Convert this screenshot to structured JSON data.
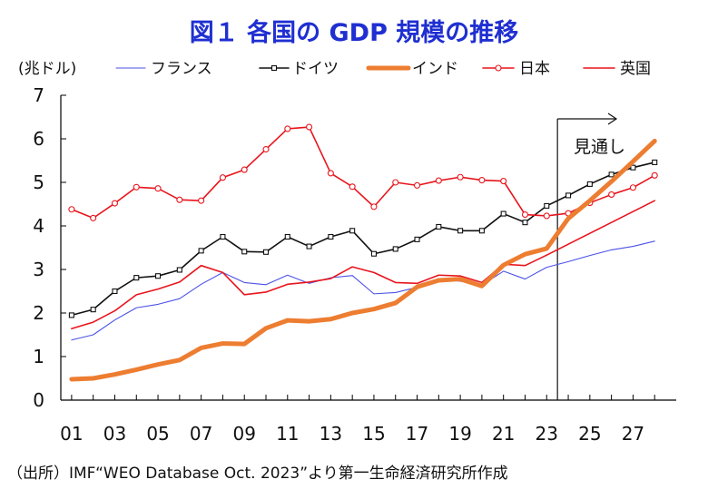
{
  "title": "図１ 各国の GDP 規模の推移",
  "source": "（出所）IMF“WEO Database Oct. 2023”より第一生命経済研究所作成",
  "chart_data": {
    "type": "line",
    "title": "図１ 各国の GDP 規模の推移",
    "ylabel": "(兆ドル)",
    "xlabel": "",
    "ylim": [
      0,
      7
    ],
    "yticks": [
      "0",
      "1",
      "2",
      "3",
      "4",
      "5",
      "6",
      "7"
    ],
    "xlim": [
      2000.5,
      2029
    ],
    "x": [
      2001,
      2002,
      2003,
      2004,
      2005,
      2006,
      2007,
      2008,
      2009,
      2010,
      2011,
      2012,
      2013,
      2014,
      2015,
      2016,
      2017,
      2018,
      2019,
      2020,
      2021,
      2022,
      2023,
      2024,
      2025,
      2026,
      2027,
      2028
    ],
    "xtick_labels": [
      {
        "x": 2001,
        "label": "01"
      },
      {
        "x": 2003,
        "label": "03"
      },
      {
        "x": 2005,
        "label": "05"
      },
      {
        "x": 2007,
        "label": "07"
      },
      {
        "x": 2009,
        "label": "09"
      },
      {
        "x": 2011,
        "label": "11"
      },
      {
        "x": 2013,
        "label": "13"
      },
      {
        "x": 2015,
        "label": "15"
      },
      {
        "x": 2017,
        "label": "17"
      },
      {
        "x": 2019,
        "label": "19"
      },
      {
        "x": 2021,
        "label": "21"
      },
      {
        "x": 2023,
        "label": "23"
      },
      {
        "x": 2025,
        "label": "25"
      },
      {
        "x": 2027,
        "label": "27"
      }
    ],
    "projection": {
      "start": 2023.5,
      "label": "見通し"
    },
    "series": [
      {
        "name": "フランス",
        "color": "#4a52e6",
        "style": "thin",
        "values": [
          1.38,
          1.5,
          1.84,
          2.12,
          2.2,
          2.33,
          2.66,
          2.93,
          2.7,
          2.65,
          2.87,
          2.68,
          2.81,
          2.86,
          2.44,
          2.47,
          2.59,
          2.79,
          2.73,
          2.64,
          2.96,
          2.78,
          3.05,
          3.18,
          3.32,
          3.45,
          3.53,
          3.65
        ]
      },
      {
        "name": "ドイツ",
        "color": "#111111",
        "style": "square",
        "values": [
          1.95,
          2.08,
          2.5,
          2.81,
          2.85,
          2.99,
          3.43,
          3.75,
          3.41,
          3.4,
          3.75,
          3.53,
          3.75,
          3.89,
          3.36,
          3.47,
          3.69,
          3.98,
          3.89,
          3.89,
          4.28,
          4.08,
          4.46,
          4.7,
          4.96,
          5.18,
          5.34,
          5.46
        ]
      },
      {
        "name": "インド",
        "color": "#ed7d31",
        "style": "thick",
        "values": [
          0.48,
          0.5,
          0.59,
          0.7,
          0.82,
          0.92,
          1.2,
          1.3,
          1.29,
          1.65,
          1.83,
          1.81,
          1.86,
          2.0,
          2.09,
          2.23,
          2.6,
          2.75,
          2.78,
          2.62,
          3.1,
          3.35,
          3.48,
          4.17,
          4.58,
          5.02,
          5.48,
          5.95
        ]
      },
      {
        "name": "日本",
        "color": "#e8141c",
        "style": "circle",
        "values": [
          4.38,
          4.18,
          4.52,
          4.89,
          4.86,
          4.6,
          4.58,
          5.11,
          5.29,
          5.76,
          6.23,
          6.27,
          5.21,
          4.9,
          4.44,
          5.0,
          4.93,
          5.04,
          5.12,
          5.05,
          5.03,
          4.26,
          4.23,
          4.29,
          4.53,
          4.72,
          4.88,
          5.16
        ]
      },
      {
        "name": "英国",
        "color": "#e8141c",
        "style": "line",
        "values": [
          1.64,
          1.79,
          2.05,
          2.42,
          2.55,
          2.71,
          3.09,
          2.93,
          2.42,
          2.48,
          2.66,
          2.71,
          2.79,
          3.06,
          2.93,
          2.7,
          2.68,
          2.87,
          2.85,
          2.7,
          3.12,
          3.09,
          3.33,
          3.58,
          3.83,
          4.08,
          4.33,
          4.58
        ]
      }
    ]
  }
}
